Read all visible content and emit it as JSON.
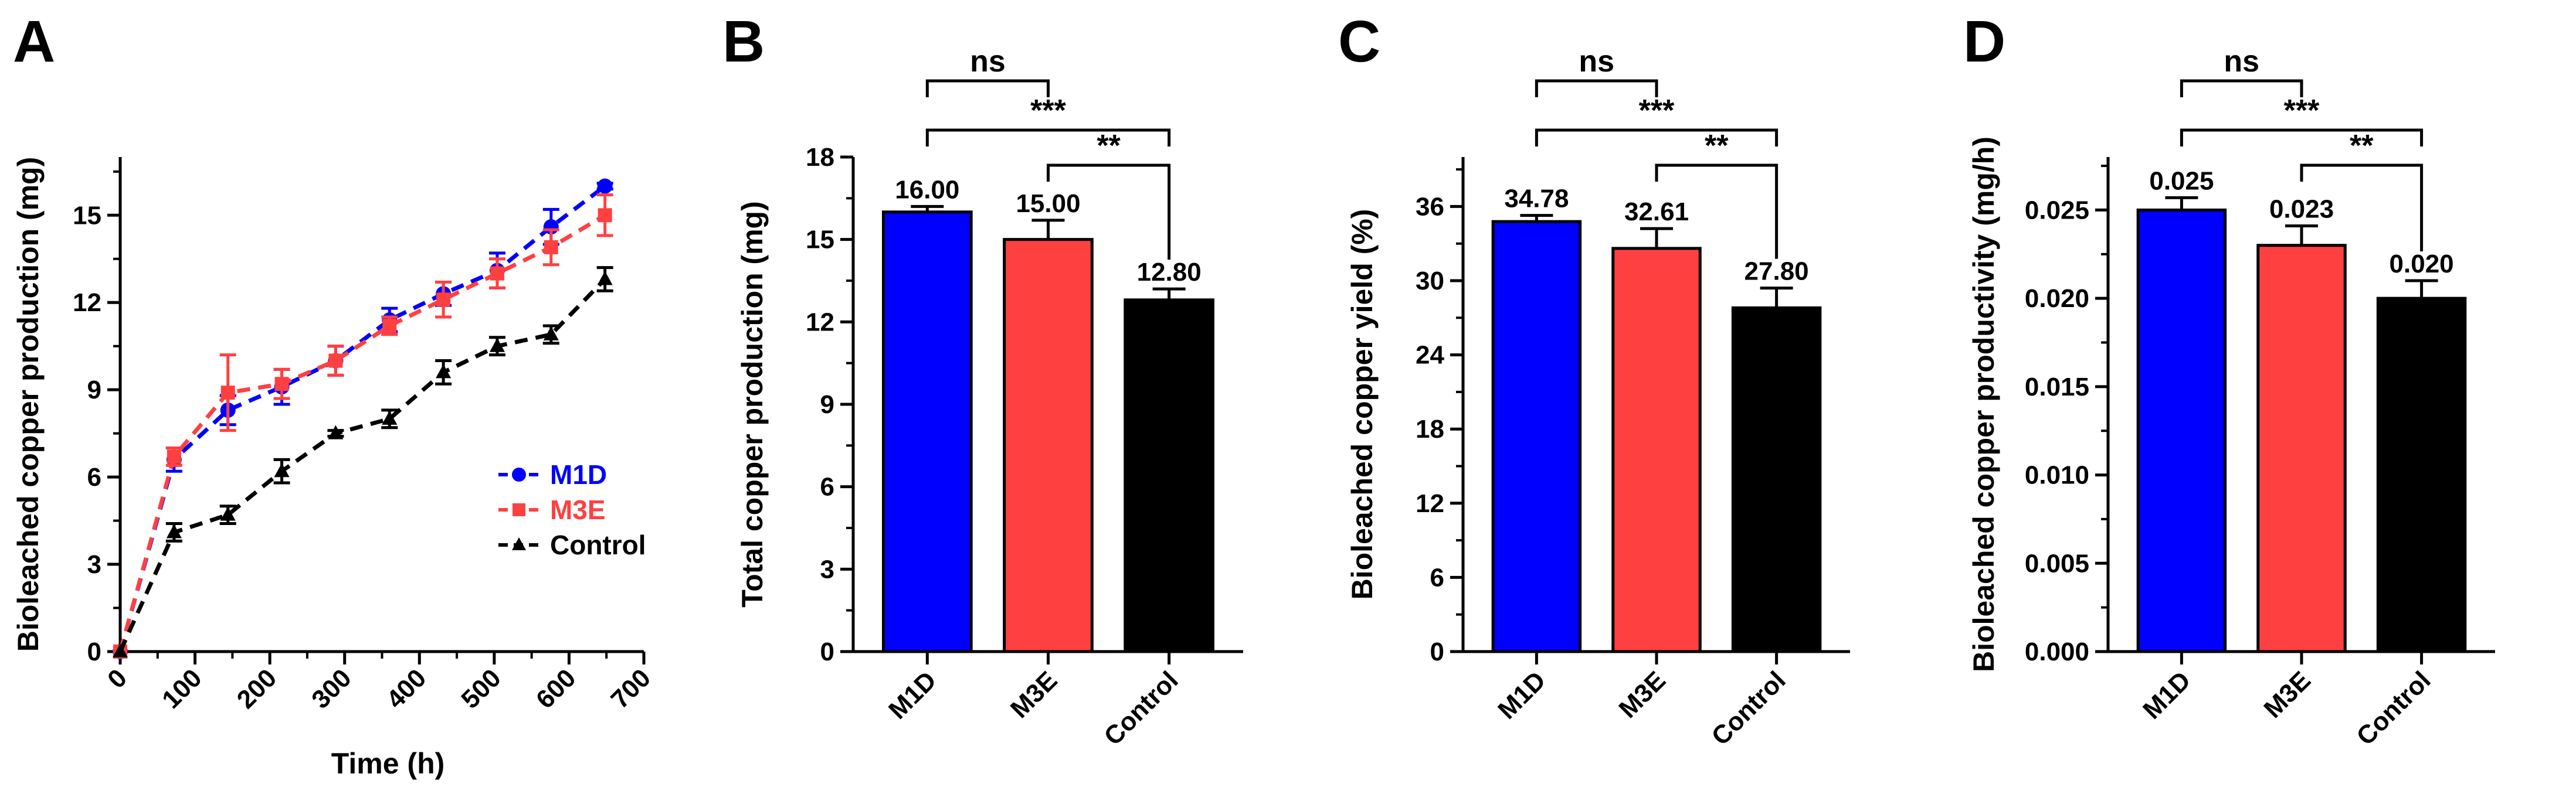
{
  "panels": {
    "a": {
      "letter": "A"
    },
    "b": {
      "letter": "B"
    },
    "c": {
      "letter": "C"
    },
    "d": {
      "letter": "D"
    }
  },
  "colors": {
    "m1d": "#0000ff",
    "m3e": "#ff4040",
    "control": "#000000"
  },
  "chart_data": [
    {
      "id": "A",
      "type": "line",
      "xlabel": "Time (h)",
      "ylabel": "Bioleached copper production (mg)",
      "xlim": [
        0,
        700
      ],
      "ylim": [
        0,
        17
      ],
      "xticks": [
        0,
        100,
        200,
        300,
        400,
        500,
        600,
        700
      ],
      "yticks": [
        0,
        3,
        6,
        9,
        12,
        15
      ],
      "x": [
        0,
        72,
        144,
        216,
        288,
        360,
        432,
        504,
        576,
        648
      ],
      "series": [
        {
          "name": "M1D",
          "color": "#0000ff",
          "marker": "circle",
          "values": [
            0,
            6.6,
            8.3,
            9.1,
            10.0,
            11.4,
            12.3,
            13.1,
            14.6,
            16.0
          ],
          "errors": [
            0,
            0.4,
            0.5,
            0.6,
            0.5,
            0.4,
            0.4,
            0.6,
            0.6,
            0.1
          ]
        },
        {
          "name": "M3E",
          "color": "#ff4040",
          "marker": "square",
          "values": [
            0,
            6.7,
            8.9,
            9.2,
            10.0,
            11.2,
            12.1,
            13.0,
            13.9,
            15.0
          ],
          "errors": [
            0,
            0.3,
            1.3,
            0.5,
            0.5,
            0.3,
            0.6,
            0.5,
            0.6,
            0.7
          ]
        },
        {
          "name": "Control",
          "color": "#000000",
          "marker": "triangle",
          "values": [
            0,
            4.1,
            4.7,
            6.2,
            7.5,
            8.0,
            9.6,
            10.5,
            10.9,
            12.8
          ],
          "errors": [
            0,
            0.3,
            0.3,
            0.4,
            0.1,
            0.3,
            0.4,
            0.3,
            0.3,
            0.4
          ]
        }
      ],
      "legend": "right"
    },
    {
      "id": "B",
      "type": "bar",
      "ylabel": "Total copper production (mg)",
      "ylim": [
        0,
        18
      ],
      "yticks": [
        0,
        3,
        6,
        9,
        12,
        15,
        18
      ],
      "tick_labels": [
        "0",
        "3",
        "6",
        "9",
        "12",
        "15",
        "18"
      ],
      "categories": [
        "M1D",
        "M3E",
        "Control"
      ],
      "values": [
        16.0,
        15.0,
        12.8
      ],
      "errors": [
        0.2,
        0.7,
        0.4
      ],
      "value_labels": [
        "16.00",
        "15.00",
        "12.80"
      ],
      "significance": [
        {
          "from": 0,
          "to": 1,
          "label": "ns"
        },
        {
          "from": 0,
          "to": 2,
          "label": "***"
        },
        {
          "from": 1,
          "to": 2,
          "label": "**"
        }
      ]
    },
    {
      "id": "C",
      "type": "bar",
      "ylabel": "Bioleached copper yield (%)",
      "ylim": [
        0,
        40
      ],
      "yticks": [
        0,
        6,
        12,
        18,
        24,
        30,
        36
      ],
      "tick_labels": [
        "0",
        "6",
        "12",
        "18",
        "24",
        "30",
        "36"
      ],
      "categories": [
        "M1D",
        "M3E",
        "Control"
      ],
      "values": [
        34.78,
        32.61,
        27.8
      ],
      "errors": [
        0.5,
        1.6,
        1.6
      ],
      "value_labels": [
        "34.78",
        "32.61",
        "27.80"
      ],
      "significance": [
        {
          "from": 0,
          "to": 1,
          "label": "ns"
        },
        {
          "from": 0,
          "to": 2,
          "label": "***"
        },
        {
          "from": 1,
          "to": 2,
          "label": "**"
        }
      ]
    },
    {
      "id": "D",
      "type": "bar",
      "ylabel": "Bioleached copper productivity (mg/h)",
      "ylim": [
        0,
        0.028
      ],
      "yticks": [
        0,
        0.005,
        0.01,
        0.015,
        0.02,
        0.025
      ],
      "tick_labels": [
        "0.000",
        "0.005",
        "0.010",
        "0.015",
        "0.020",
        "0.025"
      ],
      "categories": [
        "M1D",
        "M3E",
        "Control"
      ],
      "values": [
        0.025,
        0.023,
        0.02
      ],
      "errors": [
        0.0007,
        0.0011,
        0.001
      ],
      "value_labels": [
        "0.025",
        "0.023",
        "0.020"
      ],
      "significance": [
        {
          "from": 0,
          "to": 1,
          "label": "ns"
        },
        {
          "from": 0,
          "to": 2,
          "label": "***"
        },
        {
          "from": 1,
          "to": 2,
          "label": "**"
        }
      ]
    }
  ]
}
